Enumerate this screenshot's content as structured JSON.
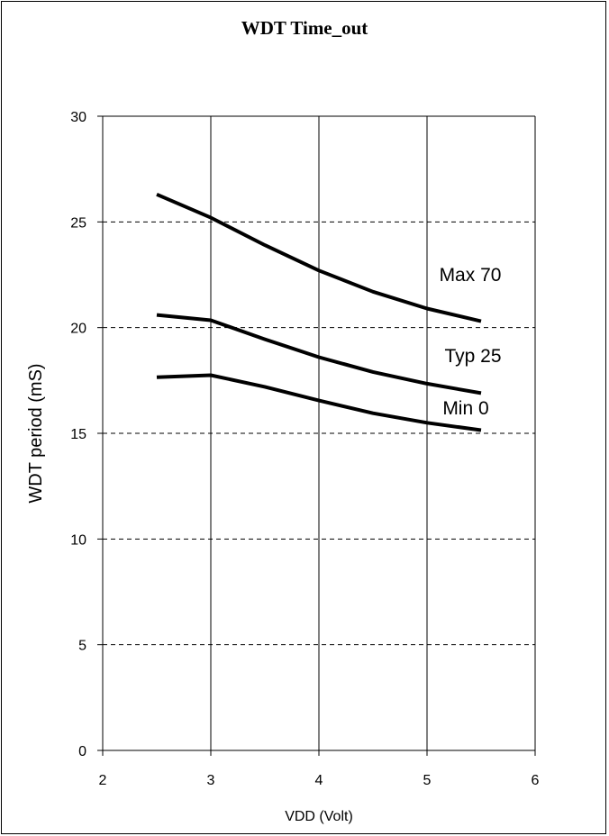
{
  "chart_data": {
    "type": "line",
    "title": "WDT Time_out",
    "xlabel": "VDD  (Volt)",
    "ylabel": "WDT period (mS)",
    "xlim": [
      2,
      6
    ],
    "ylim": [
      0,
      30
    ],
    "x_ticks": [
      "2",
      "3",
      "4",
      "5",
      "6"
    ],
    "y_ticks": [
      "0",
      "5",
      "10",
      "15",
      "20",
      "25",
      "30"
    ],
    "grid": {
      "x": "solid",
      "y": "dashed"
    },
    "series": [
      {
        "name": "Max 70",
        "x": [
          2.5,
          3,
          3.5,
          4,
          4.5,
          5,
          5.5
        ],
        "y": [
          26.3,
          25.2,
          23.9,
          22.7,
          21.7,
          20.9,
          20.3
        ]
      },
      {
        "name": "Typ 25",
        "x": [
          2.5,
          3,
          3.5,
          4,
          4.5,
          5,
          5.5
        ],
        "y": [
          20.6,
          20.35,
          19.45,
          18.6,
          17.9,
          17.35,
          16.9
        ]
      },
      {
        "name": "Min 0",
        "x": [
          2.5,
          3,
          3.5,
          4,
          4.5,
          5,
          5.5
        ],
        "y": [
          17.65,
          17.75,
          17.2,
          16.55,
          15.95,
          15.5,
          15.15
        ]
      }
    ],
    "line_color": "#000000"
  }
}
